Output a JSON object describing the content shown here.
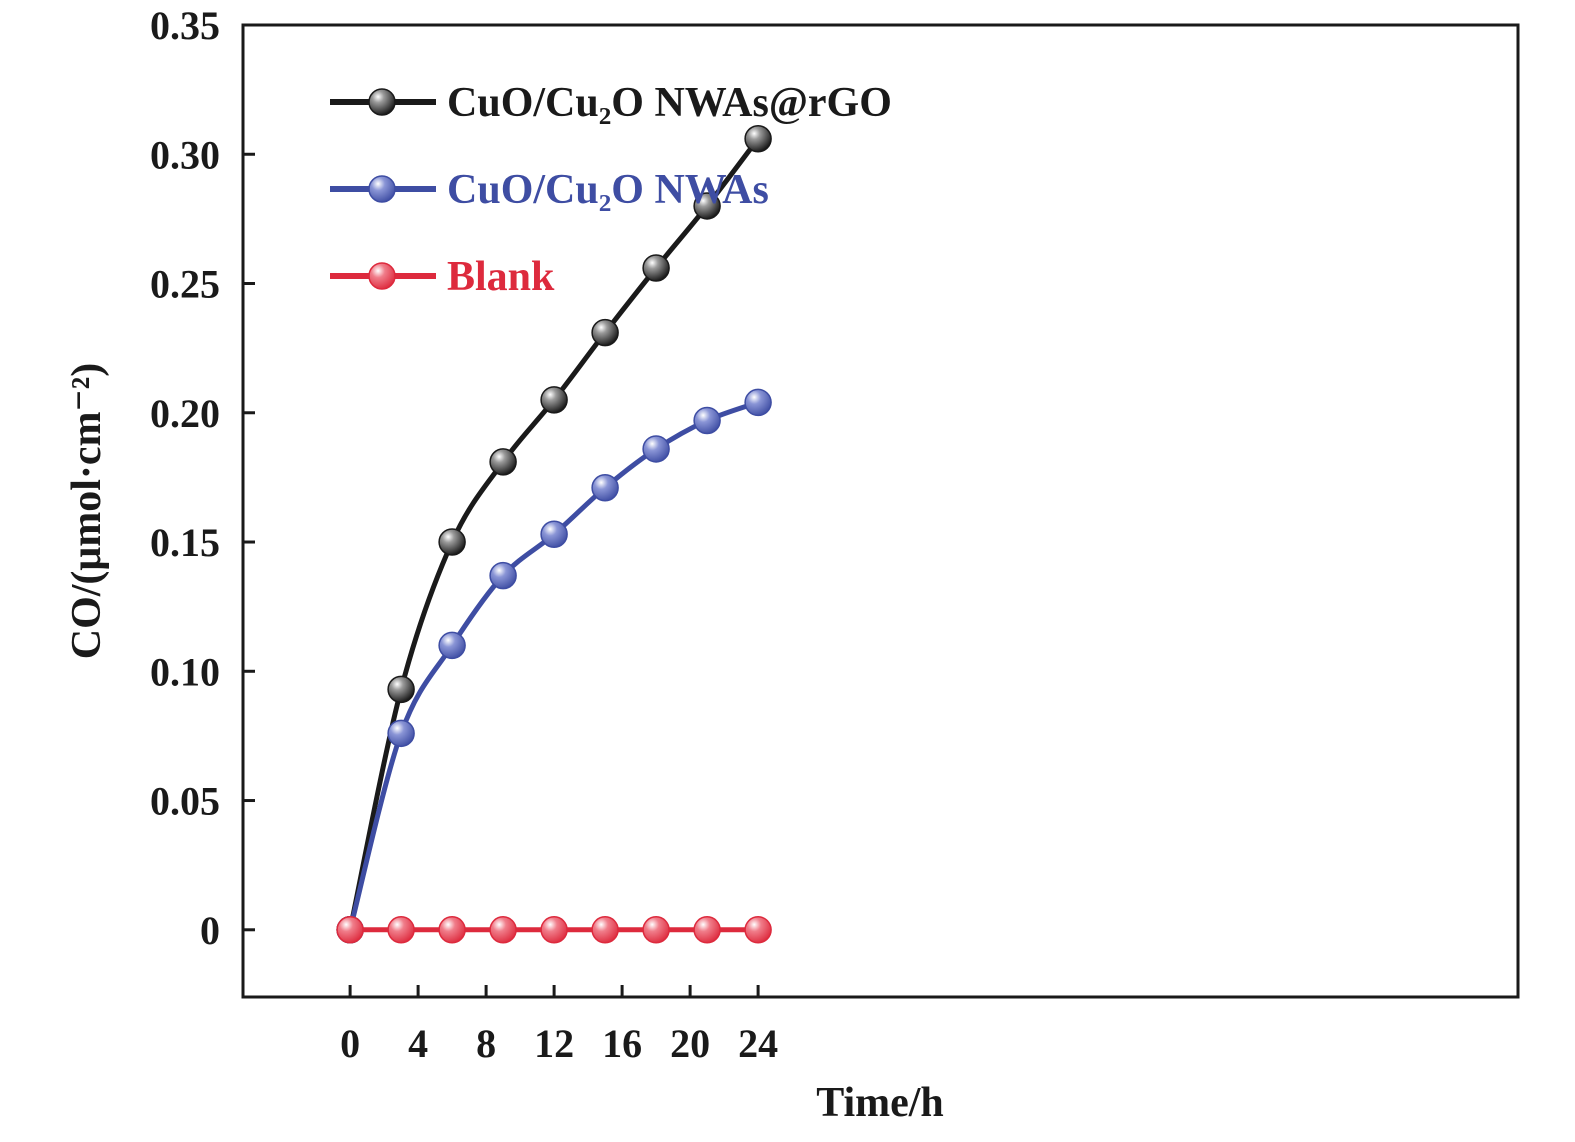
{
  "chart_data": {
    "type": "line",
    "title": "",
    "xlabel": "Time/h",
    "ylabel": "CO/(μmol·cm⁻²)",
    "xlim": [
      -6.3,
      68.7
    ],
    "ylim": [
      -0.026,
      0.35
    ],
    "x_ticks": [
      0,
      4,
      8,
      12,
      16,
      20,
      24
    ],
    "x_tick_labels": [
      "0",
      "4",
      "8",
      "12",
      "16",
      "20",
      "24"
    ],
    "y_ticks": [
      0,
      0.05,
      0.1,
      0.15,
      0.2,
      0.25,
      0.3,
      0.35
    ],
    "y_tick_labels": [
      "0",
      "0.05",
      "0.10",
      "0.15",
      "0.20",
      "0.25",
      "0.30",
      "0.35"
    ],
    "grid": false,
    "legend_position": "top-left",
    "series": [
      {
        "name": "CuO/Cu₂O NWAs@rGO",
        "color": "#1a1a1a",
        "x": [
          0,
          3,
          6,
          9,
          12,
          15,
          18,
          21,
          24
        ],
        "y": [
          0,
          0.093,
          0.15,
          0.181,
          0.205,
          0.231,
          0.256,
          0.28,
          0.306
        ]
      },
      {
        "name": "CuO/Cu₂O NWAs",
        "color": "#3e4da3",
        "x": [
          0,
          3,
          6,
          9,
          12,
          15,
          18,
          21,
          24
        ],
        "y": [
          0,
          0.076,
          0.11,
          0.137,
          0.153,
          0.171,
          0.186,
          0.197,
          0.204
        ]
      },
      {
        "name": "Blank",
        "color": "#dd2a3d",
        "x": [
          0,
          3,
          6,
          9,
          12,
          15,
          18,
          21,
          24
        ],
        "y": [
          0,
          0,
          0,
          0,
          0,
          0,
          0,
          0,
          0
        ]
      }
    ]
  }
}
